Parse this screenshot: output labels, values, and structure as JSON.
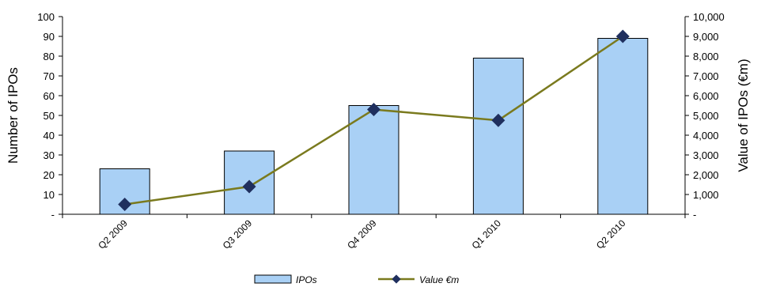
{
  "chart_data": {
    "type": "bar",
    "categories": [
      "Q2 2009",
      "Q3 2009",
      "Q4 2009",
      "Q1 2010",
      "Q2 2010"
    ],
    "series": [
      {
        "name": "IPOs",
        "type": "bar",
        "axis": "left",
        "values": [
          23,
          32,
          55,
          79,
          89
        ],
        "color": "#a9d0f5",
        "stroke": "#000000"
      },
      {
        "name": "Value €m",
        "type": "line",
        "axis": "right",
        "values": [
          500,
          1400,
          5300,
          4750,
          9000
        ],
        "color": "#7a7a1e",
        "marker_color": "#1f2f5e"
      }
    ],
    "ylabel": "Number of IPOs",
    "y2label": "Value of IPOs (€m)",
    "ylim": [
      0,
      100
    ],
    "y2lim": [
      0,
      10000
    ],
    "yticks": [
      "-",
      "10",
      "20",
      "30",
      "40",
      "50",
      "60",
      "70",
      "80",
      "90",
      "100"
    ],
    "y2ticks": [
      "-",
      "1,000",
      "2,000",
      "3,000",
      "4,000",
      "5,000",
      "6,000",
      "7,000",
      "8,000",
      "9,000",
      "10,000"
    ],
    "legend_position": "bottom",
    "grid": false
  }
}
